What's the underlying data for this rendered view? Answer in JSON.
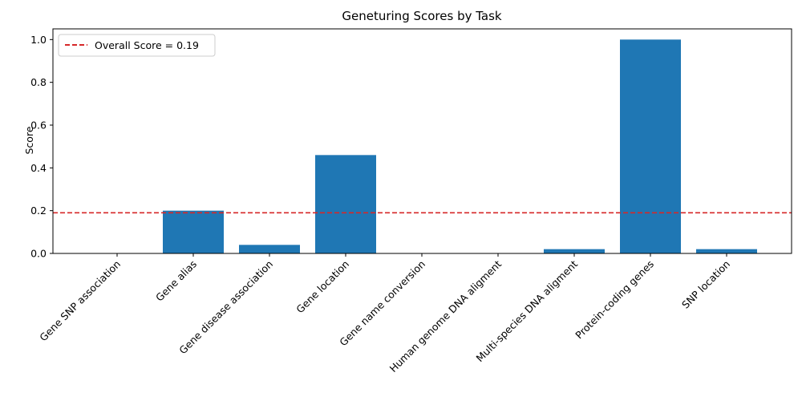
{
  "chart_data": {
    "type": "bar",
    "title": "Geneturing Scores by Task",
    "xlabel": "",
    "ylabel": "Score",
    "categories": [
      "Gene SNP association",
      "Gene alias",
      "Gene disease association",
      "Gene location",
      "Gene name conversion",
      "Human genome DNA aligment",
      "Multi-species DNA aligment",
      "Protein-coding genes",
      "SNP location"
    ],
    "values": [
      0.0,
      0.2,
      0.04,
      0.46,
      0.0,
      0.0,
      0.02,
      1.0,
      0.02
    ],
    "ylim": [
      0,
      1.05
    ],
    "yticks": [
      "0.0",
      "0.2",
      "0.4",
      "0.6",
      "0.8",
      "1.0"
    ],
    "bar_color": "#1f77b4",
    "reference_line": {
      "value": 0.19,
      "label": "Overall Score = 0.19",
      "color": "#d62728",
      "style": "dashed"
    },
    "legend_position": "top-left",
    "grid": false
  }
}
